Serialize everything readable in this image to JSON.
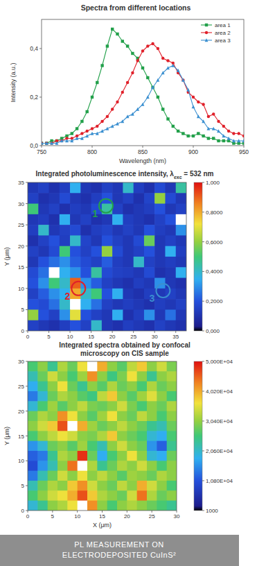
{
  "chart_data": [
    {
      "type": "line",
      "title": "Spectra from different locations",
      "x_label": "Wavelength (nm)",
      "y_label": "Intensity (a.u.)",
      "x": [
        750,
        755,
        760,
        765,
        770,
        775,
        780,
        785,
        790,
        795,
        800,
        805,
        810,
        815,
        820,
        825,
        830,
        835,
        840,
        845,
        850,
        855,
        860,
        865,
        870,
        875,
        880,
        885,
        890,
        895,
        900,
        905,
        910,
        915,
        920,
        925,
        930,
        935,
        940,
        945,
        950
      ],
      "series": [
        {
          "name": "area 1",
          "color": "#22a04a",
          "marker": "square",
          "line_style": "solid",
          "values": [
            0.01,
            0.01,
            0.02,
            0.02,
            0.03,
            0.04,
            0.05,
            0.07,
            0.1,
            0.14,
            0.2,
            0.26,
            0.33,
            0.41,
            0.48,
            0.46,
            0.43,
            0.41,
            0.38,
            0.36,
            0.32,
            0.28,
            0.24,
            0.2,
            0.15,
            0.11,
            0.08,
            0.06,
            0.05,
            0.04,
            0.04,
            0.05,
            0.04,
            0.03,
            0.03,
            0.02,
            0.02,
            0.02,
            0.01,
            0.01,
            0.01
          ]
        },
        {
          "name": "area 2",
          "color": "#e0202a",
          "marker": "circle",
          "line_style": "solid",
          "values": [
            0.01,
            0.01,
            0.01,
            0.02,
            0.02,
            0.03,
            0.03,
            0.04,
            0.05,
            0.06,
            0.07,
            0.08,
            0.1,
            0.12,
            0.15,
            0.18,
            0.22,
            0.26,
            0.3,
            0.35,
            0.39,
            0.41,
            0.42,
            0.4,
            0.36,
            0.35,
            0.34,
            0.3,
            0.27,
            0.22,
            0.2,
            0.18,
            0.17,
            0.12,
            0.13,
            0.1,
            0.08,
            0.06,
            0.05,
            0.05,
            0.04
          ]
        },
        {
          "name": "area 3",
          "color": "#3a8fd0",
          "marker": "triangle",
          "line_style": "solid",
          "values": [
            0.01,
            0.01,
            0.01,
            0.01,
            0.02,
            0.02,
            0.02,
            0.03,
            0.03,
            0.04,
            0.05,
            0.05,
            0.06,
            0.07,
            0.08,
            0.09,
            0.1,
            0.12,
            0.13,
            0.15,
            0.17,
            0.2,
            0.24,
            0.27,
            0.3,
            0.32,
            0.33,
            0.31,
            0.27,
            0.23,
            0.16,
            0.12,
            0.1,
            0.07,
            0.07,
            0.06,
            0.04,
            0.03,
            0.02,
            0.02,
            0.02
          ]
        }
      ],
      "xlim": [
        750,
        950
      ],
      "ylim": [
        0,
        0.52
      ],
      "xticks": [
        750,
        800,
        850,
        900,
        950
      ],
      "yticks": [
        {
          "value": 0,
          "label": "0,0"
        },
        {
          "value": 0.2,
          "label": "0,2"
        },
        {
          "value": 0.4,
          "label": "0,4"
        }
      ],
      "legend": "upper right"
    },
    {
      "type": "heatmap",
      "title_parts": [
        "Integrated photoluminescence intensity, λ",
        "exc",
        " = 532 nm"
      ],
      "y_label": "Y (μm)",
      "xlim": [
        0,
        37.5
      ],
      "ylim": [
        0,
        35
      ],
      "xticks": [
        0,
        5,
        10,
        15,
        20,
        25,
        30,
        35
      ],
      "yticks": [
        0,
        5,
        10,
        15,
        20,
        25,
        30,
        35
      ],
      "cells": [
        [
          0.12,
          0.15,
          0.1,
          0.14,
          0.35,
          0.12,
          0.1,
          0.15,
          0.12,
          0.4,
          0.14,
          0.1,
          0.18,
          0.12,
          0.45
        ],
        [
          0.15,
          0.1,
          0.12,
          0.18,
          0.12,
          0.1,
          0.14,
          0.2,
          0.12,
          0.15,
          0.1,
          0.16,
          0.6,
          0.18,
          0.12
        ],
        [
          0.5,
          0.12,
          0.15,
          0.1,
          0.14,
          0.12,
          0.18,
          0.45,
          0.15,
          0.1,
          0.12,
          0.14,
          0.2,
          0.12,
          0.15
        ],
        [
          0.12,
          0.14,
          0.1,
          0.35,
          0.12,
          0.15,
          0.1,
          0.12,
          0.35,
          0.14,
          0.12,
          0.1,
          0.15,
          0.2,
          1.2
        ],
        [
          0.14,
          0.4,
          0.12,
          0.15,
          0.18,
          0.1,
          0.14,
          0.16,
          0.12,
          0.15,
          0.12,
          0.2,
          0.14,
          0.12,
          0.3
        ],
        [
          0.1,
          0.15,
          0.2,
          0.14,
          0.4,
          0.16,
          0.12,
          0.2,
          0.15,
          0.12,
          0.18,
          0.55,
          0.12,
          0.15,
          0.12
        ],
        [
          0.15,
          0.12,
          0.18,
          0.5,
          0.2,
          0.15,
          0.2,
          0.6,
          0.18,
          0.12,
          0.15,
          0.2,
          0.12,
          0.35,
          0.14
        ],
        [
          0.12,
          0.2,
          0.25,
          0.3,
          0.22,
          0.18,
          0.15,
          0.22,
          0.14,
          0.12,
          0.4,
          0.15,
          0.12,
          0.14,
          0.12
        ],
        [
          0.18,
          0.25,
          1.1,
          0.35,
          0.3,
          0.2,
          0.45,
          0.18,
          0.15,
          0.14,
          0.12,
          0.18,
          0.1,
          0.12,
          0.35
        ],
        [
          0.2,
          0.3,
          0.5,
          0.4,
          0.9,
          0.3,
          0.22,
          0.15,
          0.12,
          0.1,
          0.14,
          0.12,
          0.3,
          0.12,
          0.1
        ],
        [
          0.15,
          0.22,
          0.3,
          0.35,
          0.8,
          0.4,
          0.5,
          0.2,
          0.35,
          0.12,
          0.1,
          0.14,
          0.12,
          0.15,
          0.12
        ],
        [
          0.2,
          0.18,
          0.25,
          0.4,
          1.2,
          0.35,
          0.25,
          0.15,
          0.12,
          0.14,
          0.12,
          0.1,
          0.14,
          0.12,
          0.15
        ],
        [
          0.6,
          0.2,
          0.15,
          0.3,
          0.7,
          0.2,
          0.15,
          0.12,
          0.35,
          0.1,
          0.14,
          0.3,
          0.12,
          0.25,
          0.12
        ],
        [
          0.15,
          0.12,
          0.1,
          0.14,
          0.2,
          0.15,
          0.4,
          0.12,
          0.1,
          0.14,
          0.12,
          0.1,
          0.15,
          0.12,
          0.1
        ]
      ],
      "colorbar": {
        "range": [
          0,
          1
        ],
        "ticks": [
          {
            "value": 0,
            "label": "0,000"
          },
          {
            "value": 0.2,
            "label": "0,2000"
          },
          {
            "value": 0.4,
            "label": "0,4000"
          },
          {
            "value": 0.6,
            "label": "0,6000"
          },
          {
            "value": 0.8,
            "label": "0,8000"
          },
          {
            "value": 1,
            "label": "1,000"
          }
        ]
      },
      "annotations": [
        {
          "text": "1",
          "x": 18.5,
          "y": 29.5,
          "color": "#22a04a"
        },
        {
          "text": "2",
          "x": 12,
          "y": 10,
          "color": "#e0202a"
        },
        {
          "text": "3",
          "x": 32,
          "y": 9.5,
          "color": "#3a8fd0"
        }
      ]
    },
    {
      "type": "heatmap",
      "title_lines": [
        "Integrated spectra obtained by confocal",
        "microscopy on CIS sample"
      ],
      "x_label": "X (μm)",
      "y_label": "Y (μm)",
      "xlim": [
        0,
        30
      ],
      "ylim": [
        0,
        30
      ],
      "xticks": [
        0,
        5,
        10,
        15,
        20,
        25,
        30
      ],
      "yticks": [
        0,
        5,
        10,
        15,
        20,
        25,
        30
      ],
      "cells": [
        [
          26000,
          30000,
          24000,
          32000,
          28000,
          36000,
          55000,
          40000,
          30000,
          27000,
          33000,
          38000,
          30000,
          34000,
          29000
        ],
        [
          22000,
          28000,
          34000,
          30000,
          26000,
          31000,
          42000,
          30000,
          25000,
          29000,
          36000,
          30000,
          24000,
          30000,
          32000
        ],
        [
          18000,
          24000,
          30000,
          36000,
          28000,
          24000,
          30000,
          27000,
          32000,
          28000,
          30000,
          26000,
          32000,
          28000,
          30000
        ],
        [
          14000,
          20000,
          28000,
          32000,
          30000,
          27000,
          25000,
          33000,
          38000,
          30000,
          27000,
          31000,
          35000,
          30000,
          26000
        ],
        [
          20000,
          26000,
          31000,
          27000,
          30000,
          33000,
          29000,
          28000,
          30000,
          34000,
          29000,
          26000,
          30000,
          28000,
          32000
        ],
        [
          28000,
          32000,
          30000,
          42000,
          36000,
          30000,
          27000,
          31000,
          36000,
          30000,
          28000,
          33000,
          30000,
          26000,
          30000
        ],
        [
          30000,
          34000,
          38000,
          46000,
          55000,
          40000,
          31000,
          28000,
          30000,
          33000,
          30000,
          28000,
          24000,
          22000,
          28000
        ],
        [
          26000,
          30000,
          33000,
          36000,
          34000,
          30000,
          29000,
          32000,
          38000,
          30000,
          28000,
          26000,
          20000,
          18000,
          26000
        ],
        [
          16000,
          20000,
          28000,
          30000,
          27000,
          31000,
          26000,
          22000,
          30000,
          34000,
          30000,
          28000,
          16000,
          12000,
          24000
        ],
        [
          12000,
          14000,
          24000,
          32000,
          30000,
          48000,
          28000,
          18000,
          26000,
          30000,
          36000,
          30000,
          20000,
          18000,
          28000
        ],
        [
          10000,
          16000,
          22000,
          30000,
          44000,
          55000,
          32000,
          24000,
          28000,
          32000,
          30000,
          34000,
          30000,
          26000,
          30000
        ],
        [
          14000,
          22000,
          28000,
          34000,
          30000,
          36000,
          30000,
          33000,
          30000,
          27000,
          31000,
          30000,
          28000,
          32000,
          30000
        ],
        [
          22000,
          28000,
          32000,
          30000,
          38000,
          42000,
          34000,
          30000,
          28000,
          33000,
          30000,
          40000,
          34000,
          30000,
          26000
        ],
        [
          26000,
          30000,
          34000,
          36000,
          40000,
          46000,
          38000,
          32000,
          30000,
          28000,
          34000,
          44000,
          32000,
          28000,
          30000
        ],
        [
          20000,
          24000,
          30000,
          32000,
          36000,
          55000,
          42000,
          30000,
          26000,
          30000,
          32000,
          30000,
          28000,
          26000,
          24000
        ]
      ],
      "colorbar": {
        "range": [
          1000,
          50000
        ],
        "ticks": [
          1000,
          {
            "value": 10800,
            "label": "1,080E+04"
          },
          {
            "value": 20600,
            "label": "2,060E+04"
          },
          {
            "value": 30400,
            "label": "3,040E+04"
          },
          {
            "value": 40200,
            "label": "4,020E+04"
          },
          {
            "value": 50000,
            "label": "5,000E+04"
          }
        ]
      }
    }
  ],
  "caption": [
    "PL MEASUREMENT ON",
    "ELECTRODEPOSITED CuInS²"
  ]
}
